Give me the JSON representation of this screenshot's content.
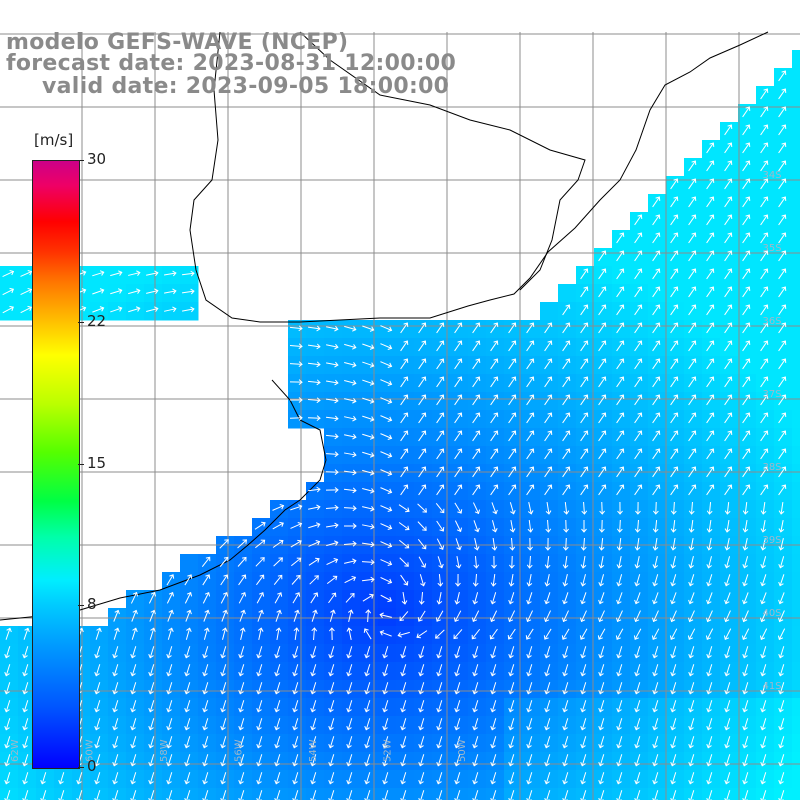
{
  "title": {
    "model": "modelo GEFS-WAVE (NCEP)",
    "forecast": "forecast date: 2023-08-31 12:00:00",
    "valid": "valid date: 2023-09-05 18:00:00"
  },
  "legend": {
    "unit": "[m/s]",
    "ticks": [
      {
        "label": "30",
        "value": 30
      },
      {
        "label": "22",
        "value": 22
      },
      {
        "label": "15",
        "value": 15
      },
      {
        "label": "8",
        "value": 8
      },
      {
        "label": "0",
        "value": 0
      }
    ],
    "min": 0,
    "max": 30
  },
  "map_labels": {
    "lat": [
      "34S",
      "35S",
      "36S",
      "37S",
      "38S",
      "39S",
      "40S",
      "41S"
    ],
    "lon": [
      "62W",
      "60W",
      "58W",
      "56W",
      "54W",
      "52W",
      "50W"
    ]
  },
  "colors": {
    "land": "#ffffff",
    "grid": "#8c8c8c",
    "coast": "#000000",
    "arrow": "#ffffff",
    "title": "#8a8a8a"
  }
}
